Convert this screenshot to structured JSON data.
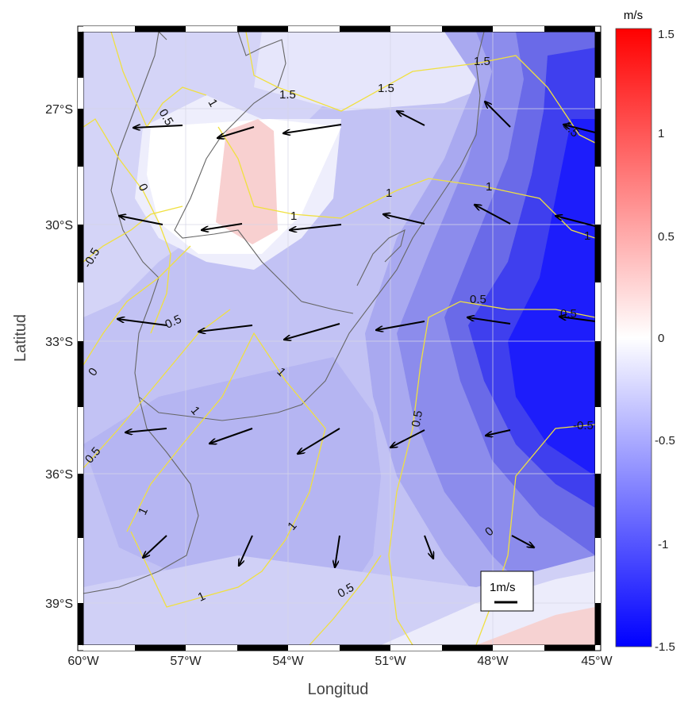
{
  "map": {
    "xlabel": "Longitud",
    "ylabel": "Latitud",
    "x_ticks": [
      "60°W",
      "57°W",
      "54°W",
      "51°W",
      "48°W",
      "45°W"
    ],
    "y_ticks": [
      "27°S",
      "30°S",
      "33°S",
      "36°S",
      "39°S"
    ],
    "extent": {
      "lon": [
        -60,
        -45
      ],
      "lat": [
        -40,
        -25.8
      ]
    },
    "contour_labels": [
      "1.5",
      "1.5",
      "1.5",
      "1.5",
      "0.5",
      "1",
      "0",
      "-0.5",
      "0.5",
      "1",
      "1",
      "0.5",
      "0.5",
      "1",
      "1",
      "0.5",
      "-0.5",
      "1",
      "0.5",
      "1",
      "1",
      "0.5",
      "0",
      "0",
      "1",
      "1"
    ],
    "scale_label": "1m/s",
    "colors": {
      "negative": "#1a1aff",
      "positive": "#ff2020",
      "zero": "#ffffff",
      "contour": "#f0e040",
      "coast": "#666666"
    }
  },
  "colorbar": {
    "unit": "m/s",
    "range": [
      -1.5,
      1.5
    ],
    "ticks": [
      "1.5",
      "1",
      "0.5",
      "0",
      "-0.5",
      "-1",
      "-1.5"
    ]
  }
}
